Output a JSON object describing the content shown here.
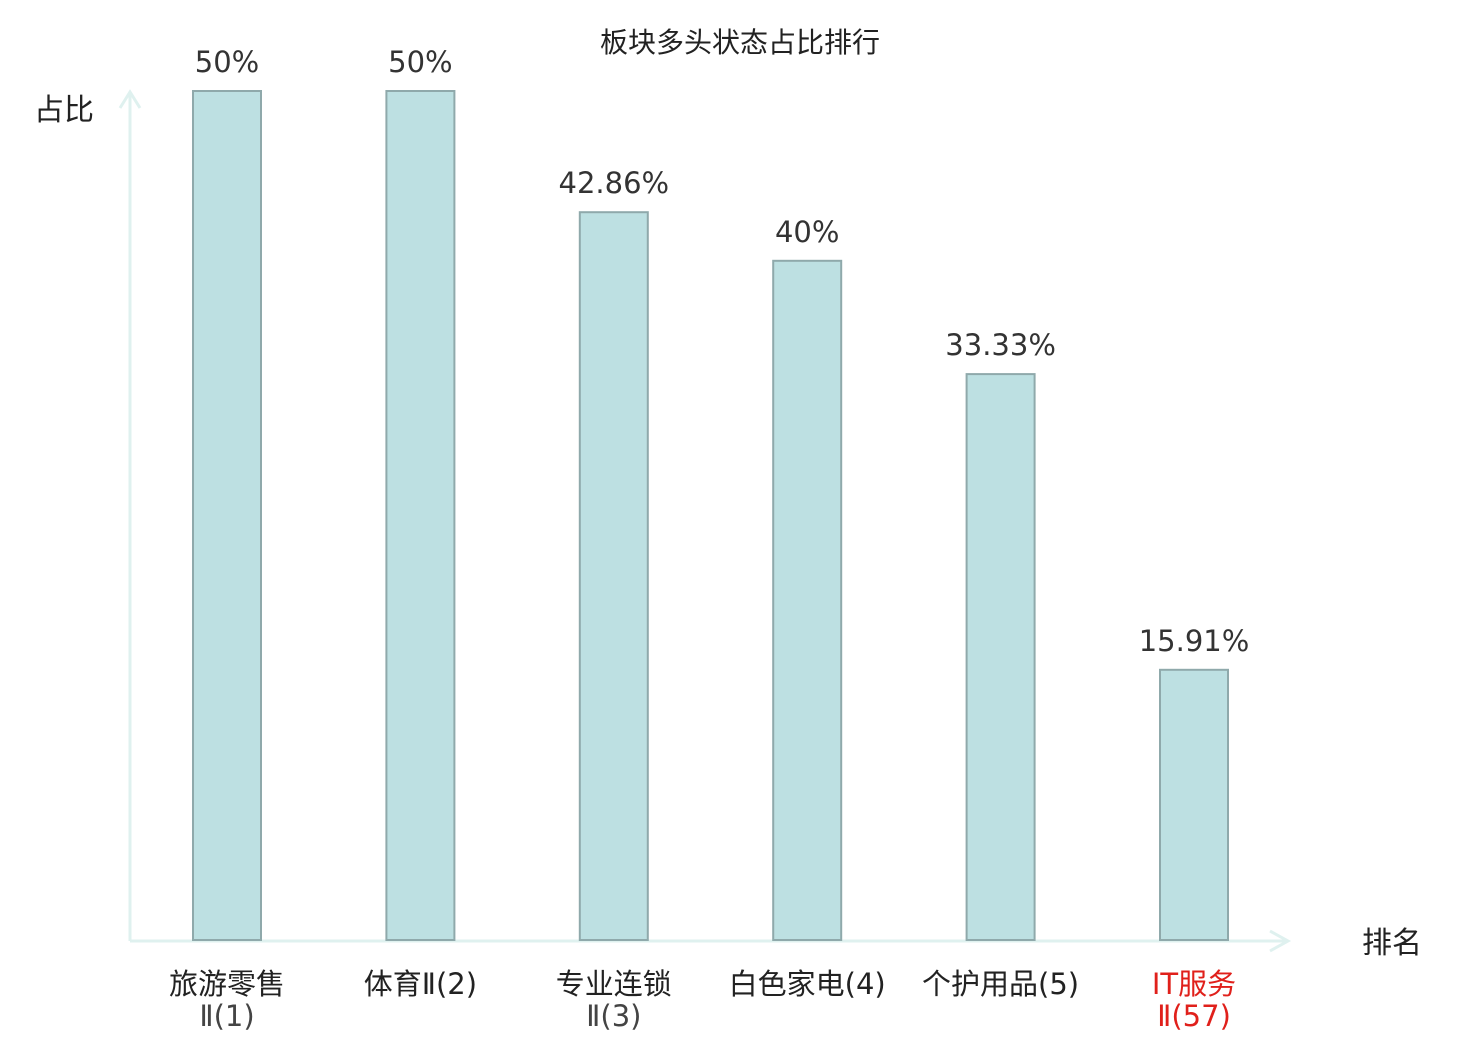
{
  "chart_data": {
    "type": "bar",
    "title": "板块多头状态占比排行",
    "xlabel": "排名",
    "ylabel": "占比",
    "categories": [
      {
        "line1": "旅游零售",
        "line2": "Ⅱ(1)",
        "highlight": false
      },
      {
        "line1": "体育Ⅱ(2)",
        "line2": "",
        "highlight": false
      },
      {
        "line1": "专业连锁",
        "line2": "Ⅱ(3)",
        "highlight": false
      },
      {
        "line1": "白色家电(4)",
        "line2": "",
        "highlight": false
      },
      {
        "line1": "个护用品(5)",
        "line2": "",
        "highlight": false
      },
      {
        "line1": "IT服务",
        "line2": "Ⅱ(57)",
        "highlight": true
      }
    ],
    "values": [
      50,
      50,
      42.86,
      40,
      33.33,
      15.91
    ],
    "value_labels": [
      "50%",
      "50%",
      "42.86%",
      "40%",
      "33.33%",
      "15.91%"
    ],
    "ylim": [
      0,
      50
    ],
    "grid": false,
    "colors": {
      "bar_fill": "#bde0e2",
      "bar_stroke": "#8fa9ab",
      "axis": "#dff1ef",
      "highlight_text": "#e0201b",
      "text": "#222222"
    }
  }
}
